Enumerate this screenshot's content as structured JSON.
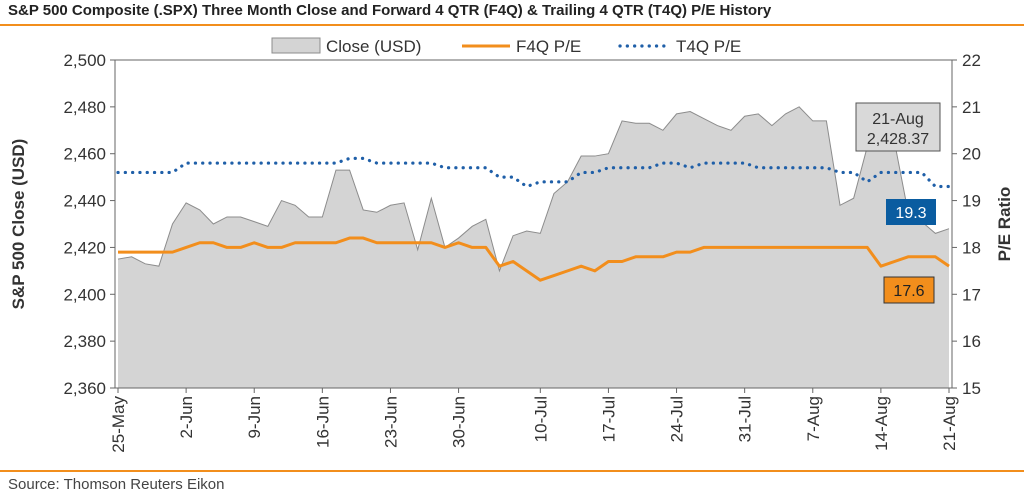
{
  "title": "S&P 500 Composite (.SPX) Three Month Close and Forward 4 QTR (F4Q) & Trailing 4 QTR (T4Q) P/E History",
  "source": "Source: Thomson Reuters Eikon",
  "chart_data": {
    "type": "line",
    "x_tick_labels": [
      "25-May",
      "2-Jun",
      "9-Jun",
      "16-Jun",
      "23-Jun",
      "30-Jun",
      "10-Jul",
      "17-Jul",
      "24-Jul",
      "31-Jul",
      "7-Aug",
      "14-Aug",
      "21-Aug"
    ],
    "x_tick_index": [
      0,
      5,
      10,
      15,
      20,
      25,
      31,
      36,
      41,
      46,
      51,
      56,
      61
    ],
    "y_left": {
      "label": "S&P 500 Close (USD)",
      "min": 2360,
      "max": 2500,
      "step": 20
    },
    "y_right": {
      "label": "P/E Ratio",
      "min": 15,
      "max": 22,
      "step": 1
    },
    "legend_position": "top",
    "grid": false,
    "series": [
      {
        "name": "Close (USD)",
        "axis": "left",
        "style": "area",
        "color": "#d4d4d4",
        "edge_color": "#8c8c8c",
        "values": [
          2415,
          2416,
          2413,
          2412,
          2430,
          2439,
          2436,
          2430,
          2433,
          2433,
          2431,
          2429,
          2440,
          2438,
          2433,
          2433,
          2453,
          2453,
          2436,
          2435,
          2438,
          2439,
          2419,
          2441,
          2420,
          2424,
          2429,
          2432,
          2410,
          2425,
          2427,
          2426,
          2443,
          2448,
          2459,
          2459,
          2460,
          2474,
          2473,
          2473,
          2470,
          2477,
          2478,
          2475,
          2472,
          2470,
          2476,
          2477,
          2472,
          2477,
          2480,
          2474,
          2474,
          2438,
          2441,
          2463,
          2466,
          2465,
          2435,
          2431,
          2426,
          2428
        ]
      },
      {
        "name": "F4Q P/E",
        "axis": "right",
        "style": "line",
        "color": "#f28e1c",
        "values": [
          17.9,
          17.9,
          17.9,
          17.9,
          17.9,
          18.0,
          18.1,
          18.1,
          18.0,
          18.0,
          18.1,
          18.0,
          18.0,
          18.1,
          18.1,
          18.1,
          18.1,
          18.2,
          18.2,
          18.1,
          18.1,
          18.1,
          18.1,
          18.1,
          18.0,
          18.1,
          18.0,
          18.0,
          17.6,
          17.7,
          17.5,
          17.3,
          17.4,
          17.5,
          17.6,
          17.5,
          17.7,
          17.7,
          17.8,
          17.8,
          17.8,
          17.9,
          17.9,
          18.0,
          18.0,
          18.0,
          18.0,
          18.0,
          18.0,
          18.0,
          18.0,
          18.0,
          18.0,
          18.0,
          18.0,
          18.0,
          17.6,
          17.7,
          17.8,
          17.8,
          17.8,
          17.6
        ]
      },
      {
        "name": "T4Q P/E",
        "axis": "right",
        "style": "dotted",
        "color": "#1f5fa8",
        "values": [
          19.6,
          19.6,
          19.6,
          19.6,
          19.6,
          19.8,
          19.8,
          19.8,
          19.8,
          19.8,
          19.8,
          19.8,
          19.8,
          19.8,
          19.8,
          19.8,
          19.8,
          19.9,
          19.9,
          19.8,
          19.8,
          19.8,
          19.8,
          19.8,
          19.7,
          19.7,
          19.7,
          19.7,
          19.5,
          19.5,
          19.3,
          19.4,
          19.4,
          19.4,
          19.6,
          19.6,
          19.7,
          19.7,
          19.7,
          19.7,
          19.8,
          19.8,
          19.7,
          19.8,
          19.8,
          19.8,
          19.8,
          19.7,
          19.7,
          19.7,
          19.7,
          19.7,
          19.7,
          19.6,
          19.6,
          19.4,
          19.6,
          19.6,
          19.6,
          19.6,
          19.3,
          19.3
        ]
      }
    ],
    "annotations": {
      "close": {
        "line1": "21-Aug",
        "line2": "2,428.37"
      },
      "t4q": {
        "value": "19.3",
        "bg": "#0a5ca0"
      },
      "f4q": {
        "value": "17.6",
        "bg": "#f28e1c"
      }
    }
  }
}
